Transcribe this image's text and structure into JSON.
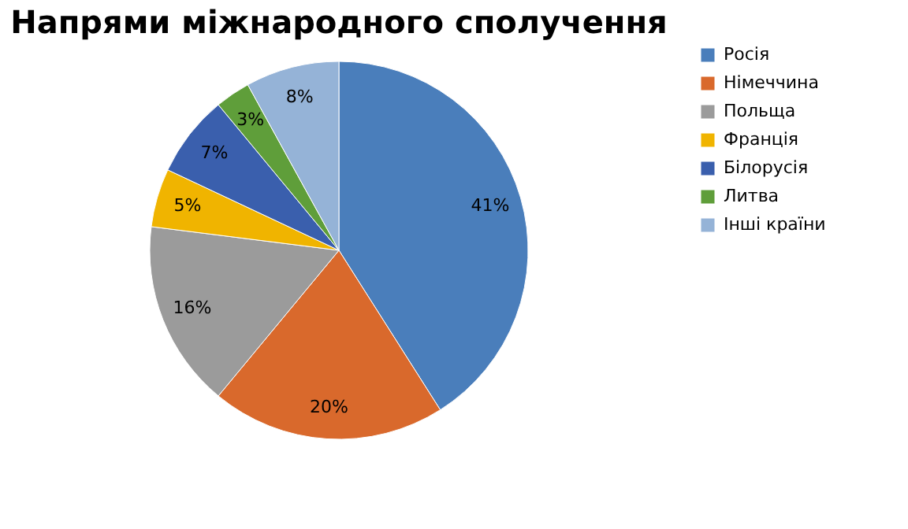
{
  "chart_data": {
    "type": "pie",
    "title": "Напрями міжнародного сполучення",
    "categories": [
      "Росія",
      "Німеччина",
      "Польща",
      "Франція",
      "Білорусія",
      "Литва",
      "Інші країни"
    ],
    "values": [
      41,
      20,
      16,
      5,
      7,
      3,
      8
    ],
    "value_labels": [
      "41%",
      "20%",
      "16%",
      "5%",
      "7%",
      "3%",
      "8%"
    ],
    "colors": [
      "#4a7ebb",
      "#d9692c",
      "#9b9b9b",
      "#f0b400",
      "#3a5fad",
      "#5f9e3a",
      "#95b3d7"
    ],
    "legend": "right"
  }
}
